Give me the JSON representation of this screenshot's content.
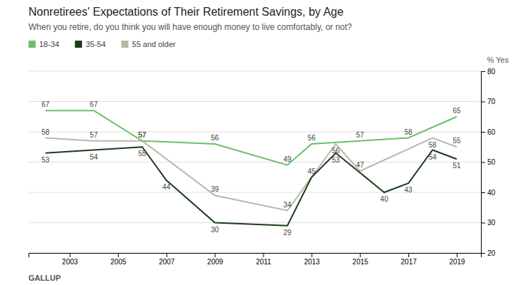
{
  "chart_data": {
    "type": "line",
    "title": "Nonretirees' Expectations of Their Retirement Savings, by Age",
    "subtitle": "When you retire, do you think you will have enough money to live comfortably, or not?",
    "ylabel": "% Yes",
    "annotations": [
      "GALLUP"
    ],
    "xlim": [
      2001.3,
      2020.0
    ],
    "xticks": [
      2003,
      2005,
      2007,
      2009,
      2011,
      2013,
      2015,
      2017,
      2019
    ],
    "ylim": [
      20,
      80
    ],
    "yticks": [
      20,
      30,
      40,
      50,
      60,
      70,
      80
    ],
    "grid": true,
    "legend": "top",
    "data_labels": true,
    "series": [
      {
        "name": "18-34",
        "color": "#6abf69",
        "x": [
          2002,
          2004,
          2006,
          2009,
          2012,
          2013,
          2015,
          2017,
          2019
        ],
        "values": [
          67,
          67,
          57,
          56,
          49,
          56,
          57,
          58,
          65
        ]
      },
      {
        "name": "35-54",
        "color": "#1a3d1a",
        "x": [
          2002,
          2004,
          2006,
          2007,
          2009,
          2012,
          2013,
          2014,
          2016,
          2017,
          2018,
          2019
        ],
        "values": [
          53,
          54,
          55,
          44,
          30,
          29,
          45,
          53,
          40,
          43,
          54,
          51
        ]
      },
      {
        "name": "55 and older",
        "color": "#b8b8a8",
        "x": [
          2002,
          2004,
          2006,
          2009,
          2012,
          2014,
          2015,
          2018,
          2019
        ],
        "values": [
          58,
          57,
          57,
          39,
          34,
          56,
          47,
          58,
          55
        ]
      }
    ]
  }
}
